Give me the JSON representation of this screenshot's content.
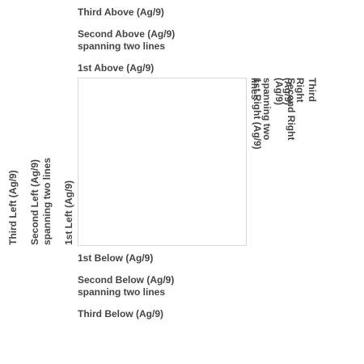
{
  "labels": {
    "above": {
      "third": "Third Above (Ag/9)",
      "second": "Second Above (Ag/9)\nspanning two lines",
      "first": "1st Above (Ag/9)"
    },
    "below": {
      "first": "1st Below (Ag/9)",
      "second": "Second Below (Ag/9)\nspanning two lines",
      "third": "Third Below (Ag/9)"
    },
    "left": {
      "third": "Third Left (Ag/9)",
      "second": "Second Left (Ag/9)\nspanning two lines",
      "first": "1st Left (Ag/9)"
    },
    "right": {
      "first": "1st Right (Ag/9)",
      "second": "Second Right (Ag/9)\nspanning two lines",
      "third": "Third Right (Ag/9)"
    }
  },
  "colors": {
    "text": "#444444",
    "box_border": "#d9d9d9",
    "background": "#ffffff"
  }
}
